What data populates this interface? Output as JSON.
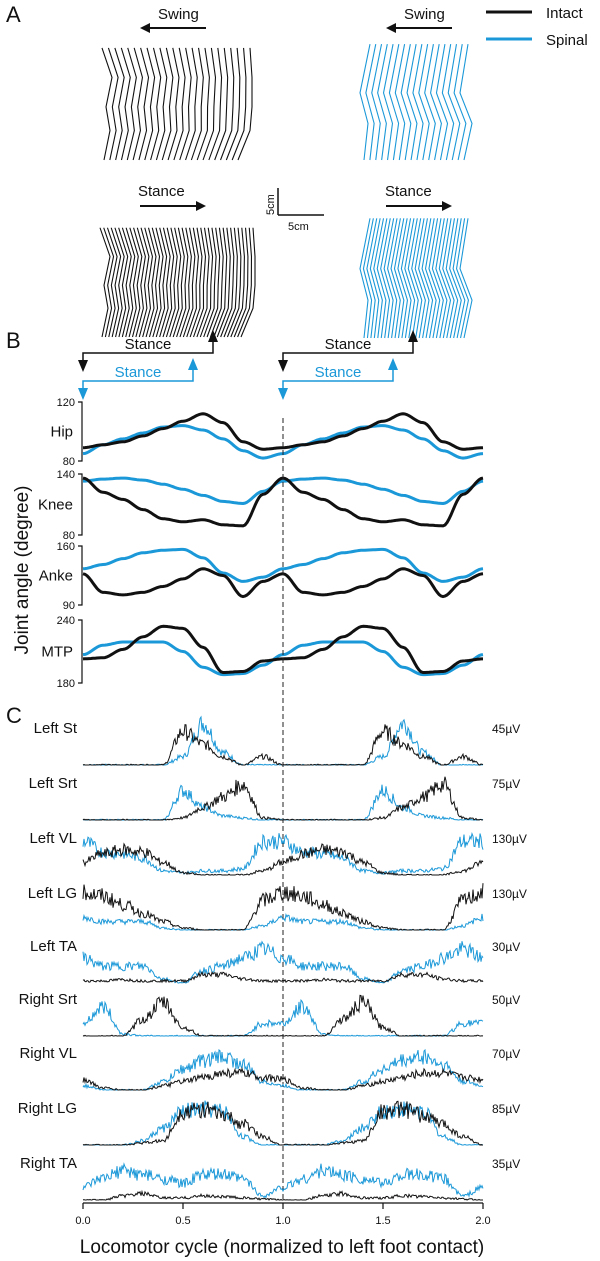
{
  "colors": {
    "intact": "#111111",
    "spinal": "#1b98d8"
  },
  "legend": [
    {
      "label": "Intact",
      "color": "#111111"
    },
    {
      "label": "Spinal",
      "color": "#1b98d8"
    }
  ],
  "panel_a": {
    "letter": "A",
    "swing_label": "Swing",
    "stance_label": "Stance",
    "scale_v": "5cm",
    "scale_h": "5cm"
  },
  "panel_b": {
    "letter": "B",
    "ylabel": "Joint angle (degree)",
    "stance_intact": "Stance",
    "stance_spinal": "Stance"
  },
  "panel_c": {
    "letter": "C"
  },
  "chart_data": [
    {
      "type": "line",
      "title": "B: Joint angles",
      "xlabel": "Locomotor cycle (normalized to left foot contact)",
      "ylabel": "Joint angle (degree)",
      "xlim": [
        0,
        2
      ],
      "x": [
        0,
        0.1,
        0.2,
        0.3,
        0.4,
        0.5,
        0.6,
        0.7,
        0.8,
        0.9,
        1.0
      ],
      "phases": {
        "intact_stance_end": 0.65,
        "spinal_stance_end": 0.55
      },
      "panels": [
        {
          "name": "Hip",
          "ylim": [
            80,
            120
          ],
          "ticks": [
            "120",
            "80"
          ],
          "series": [
            {
              "name": "Intact",
              "values": [
                89,
                91,
                93,
                97,
                102,
                107,
                112,
                106,
                93,
                88,
                89
              ]
            },
            {
              "name": "Spinal",
              "values": [
                85,
                91,
                95,
                99,
                103,
                104,
                101,
                95,
                87,
                82,
                85
              ]
            }
          ]
        },
        {
          "name": "Knee",
          "ylim": [
            80,
            140
          ],
          "ticks": [
            "140",
            "80"
          ],
          "series": [
            {
              "name": "Intact",
              "values": [
                136,
                122,
                115,
                105,
                96,
                93,
                95,
                90,
                89,
                120,
                136
              ]
            },
            {
              "name": "Spinal",
              "values": [
                133,
                135,
                136,
                134,
                130,
                125,
                119,
                113,
                111,
                123,
                133
              ]
            }
          ]
        },
        {
          "name": "Anke",
          "ylim": [
            90,
            160
          ],
          "ticks": [
            "160",
            "90"
          ],
          "series": [
            {
              "name": "Intact",
              "values": [
                127,
                105,
                102,
                105,
                112,
                121,
                133,
                125,
                100,
                118,
                127
              ]
            },
            {
              "name": "Spinal",
              "values": [
                133,
                138,
                145,
                152,
                155,
                156,
                146,
                128,
                118,
                123,
                133
              ]
            }
          ]
        },
        {
          "name": "MTP",
          "ylim": [
            180,
            240
          ],
          "ticks": [
            "240",
            "180"
          ],
          "series": [
            {
              "name": "Intact",
              "values": [
                203,
                204,
                212,
                224,
                234,
                232,
                214,
                190,
                191,
                201,
                203
              ]
            },
            {
              "name": "Spinal",
              "values": [
                207,
                216,
                219,
                219,
                219,
                210,
                195,
                188,
                189,
                197,
                207
              ]
            }
          ]
        }
      ]
    },
    {
      "type": "line",
      "title": "C: EMG activity",
      "xlabel": "Locomotor cycle (normalized to left foot contact)",
      "xlim": [
        0,
        2
      ],
      "xticks": [
        "0.0",
        "0.5",
        "1.0",
        "1.5",
        "2.0"
      ],
      "x": [
        0,
        0.1,
        0.2,
        0.3,
        0.4,
        0.5,
        0.6,
        0.7,
        0.8,
        0.9,
        1.0
      ],
      "value_unit": "relative amplitude (0-1)",
      "muscles": [
        {
          "name": "Left St",
          "scale": "45µV",
          "series": [
            {
              "name": "Intact",
              "values": [
                0,
                0,
                0,
                0,
                0,
                0.8,
                0.5,
                0.2,
                0,
                0.2,
                0
              ]
            },
            {
              "name": "Spinal",
              "values": [
                0,
                0,
                0,
                0,
                0,
                0.2,
                1.0,
                0.3,
                0,
                0,
                0
              ]
            }
          ]
        },
        {
          "name": "Left Srt",
          "scale": "75µV",
          "series": [
            {
              "name": "Intact",
              "values": [
                0,
                0,
                0,
                0,
                0,
                0.05,
                0.3,
                0.55,
                0.85,
                0.05,
                0
              ]
            },
            {
              "name": "Spinal",
              "values": [
                0,
                0,
                0,
                0,
                0,
                0.7,
                0.3,
                0.1,
                0.05,
                0,
                0
              ]
            }
          ]
        },
        {
          "name": "Left VL",
          "scale": "130µV",
          "series": [
            {
              "name": "Intact",
              "values": [
                0.3,
                0.5,
                0.6,
                0.55,
                0.3,
                0.05,
                0,
                0,
                0,
                0.1,
                0.3
              ]
            },
            {
              "name": "Spinal",
              "values": [
                0.8,
                0.55,
                0.5,
                0.4,
                0.1,
                0.05,
                0.1,
                0.1,
                0.15,
                0.8,
                0.8
              ]
            }
          ]
        },
        {
          "name": "Left LG",
          "scale": "130µV",
          "series": [
            {
              "name": "Intact",
              "values": [
                0.9,
                0.8,
                0.6,
                0.4,
                0.2,
                0.05,
                0,
                0,
                0,
                0.7,
                0.9
              ]
            },
            {
              "name": "Spinal",
              "values": [
                0.3,
                0.2,
                0.2,
                0.2,
                0.05,
                0,
                0,
                0,
                0,
                0.1,
                0.3
              ]
            }
          ]
        },
        {
          "name": "Left TA",
          "scale": "30µV",
          "series": [
            {
              "name": "Intact",
              "values": [
                0.05,
                0.05,
                0.08,
                0.05,
                0.05,
                0.05,
                0.2,
                0.2,
                0.1,
                0.05,
                0.05
              ]
            },
            {
              "name": "Spinal",
              "values": [
                0.6,
                0.4,
                0.4,
                0.4,
                0.1,
                0,
                0.3,
                0.4,
                0.6,
                0.8,
                0.6
              ]
            }
          ]
        },
        {
          "name": "Right Srt",
          "scale": "50µV",
          "series": [
            {
              "name": "Intact",
              "values": [
                0,
                0,
                0,
                0.4,
                0.8,
                0.2,
                0,
                0,
                0,
                0,
                0
              ]
            },
            {
              "name": "Spinal",
              "values": [
                0.3,
                0.7,
                0.05,
                0,
                0,
                0,
                0,
                0,
                0,
                0.3,
                0.3
              ]
            }
          ]
        },
        {
          "name": "Right VL",
          "scale": "70µV",
          "series": [
            {
              "name": "Intact",
              "values": [
                0.25,
                0.05,
                0,
                0,
                0.1,
                0.2,
                0.3,
                0.4,
                0.4,
                0.3,
                0.25
              ]
            },
            {
              "name": "Spinal",
              "values": [
                0.1,
                0,
                0,
                0,
                0.2,
                0.5,
                0.7,
                0.8,
                0.6,
                0.2,
                0.1
              ]
            }
          ]
        },
        {
          "name": "Right LG",
          "scale": "85µV",
          "series": [
            {
              "name": "Intact",
              "values": [
                0,
                0,
                0,
                0.05,
                0.1,
                0.8,
                0.85,
                0.7,
                0.5,
                0.2,
                0
              ]
            },
            {
              "name": "Spinal",
              "values": [
                0,
                0,
                0,
                0.1,
                0.4,
                0.8,
                0.85,
                0.8,
                0.2,
                0,
                0
              ]
            }
          ]
        },
        {
          "name": "Right TA",
          "scale": "35µV",
          "series": [
            {
              "name": "Intact",
              "values": [
                0,
                0,
                0.1,
                0.15,
                0.05,
                0.05,
                0.1,
                0.08,
                0.05,
                0.02,
                0
              ]
            },
            {
              "name": "Spinal",
              "values": [
                0.3,
                0.5,
                0.7,
                0.6,
                0.5,
                0.4,
                0.6,
                0.6,
                0.5,
                0.1,
                0.3
              ]
            }
          ]
        }
      ]
    }
  ]
}
